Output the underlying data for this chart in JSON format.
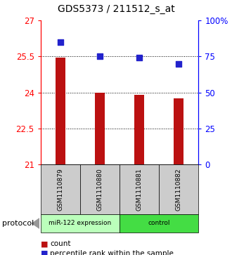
{
  "title": "GDS5373 / 211512_s_at",
  "samples": [
    "GSM1110879",
    "GSM1110880",
    "GSM1110881",
    "GSM1110882"
  ],
  "bar_values": [
    25.45,
    24.0,
    23.9,
    23.75
  ],
  "percentile_values": [
    85,
    75,
    74,
    70
  ],
  "bar_color": "#bb1111",
  "percentile_color": "#2222cc",
  "ylim_left": [
    21,
    27
  ],
  "ylim_right": [
    0,
    100
  ],
  "yticks_left": [
    21,
    22.5,
    24,
    25.5,
    27
  ],
  "yticks_right": [
    0,
    25,
    50,
    75,
    100
  ],
  "ytick_labels_right": [
    "0",
    "25",
    "50",
    "75",
    "100%"
  ],
  "dotted_lines": [
    22.5,
    24,
    25.5
  ],
  "groups": [
    {
      "label": "miR-122 expression",
      "samples": [
        0,
        1
      ],
      "color": "#bbffbb"
    },
    {
      "label": "control",
      "samples": [
        2,
        3
      ],
      "color": "#44dd44"
    }
  ],
  "protocol_label": "protocol",
  "legend_bar_label": "count",
  "legend_dot_label": "percentile rank within the sample",
  "background_color": "#ffffff",
  "title_fontsize": 10,
  "tick_fontsize": 8.5
}
